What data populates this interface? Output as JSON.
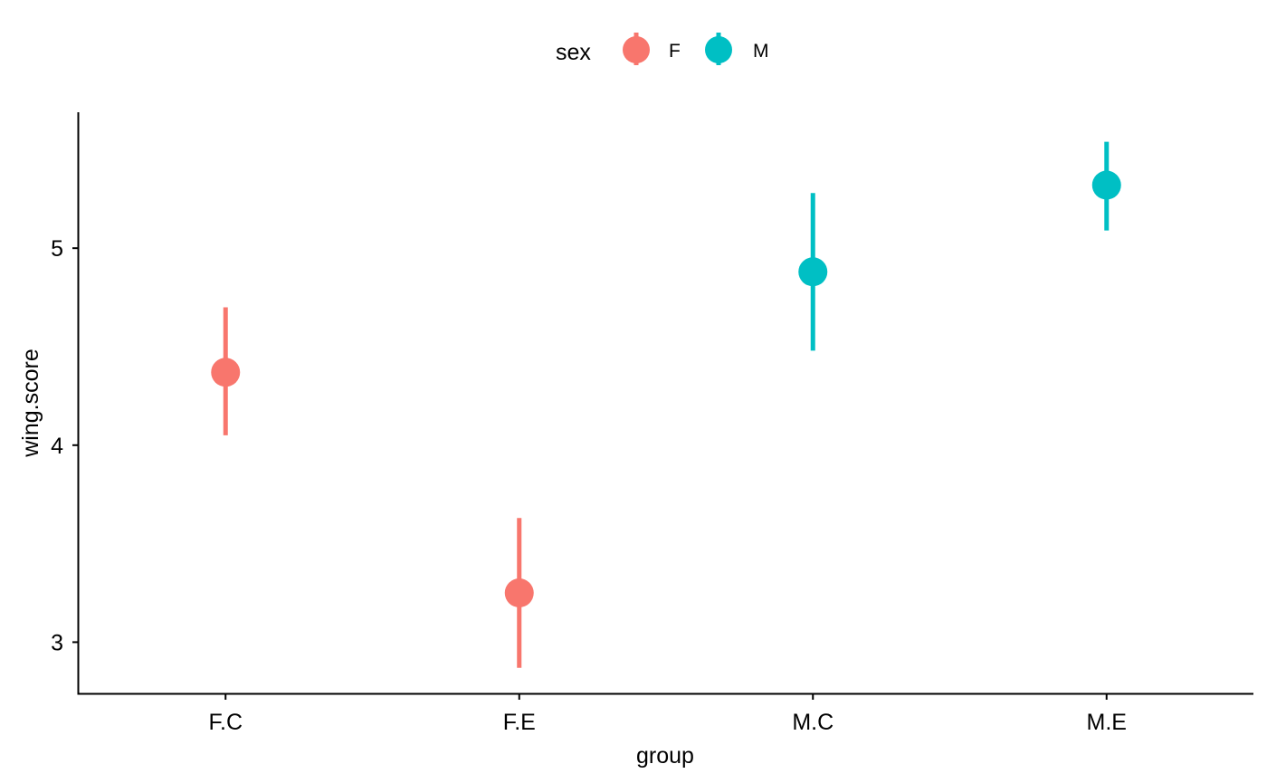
{
  "chart_data": {
    "type": "scatter",
    "x_label": "group",
    "y_label": "wing.score",
    "categories": [
      "F.C",
      "F.E",
      "M.C",
      "M.E"
    ],
    "y_range": [
      2.74,
      5.69
    ],
    "y_ticks": [
      3,
      4,
      5
    ],
    "grid": false,
    "legend": {
      "title": "sex",
      "position": "top",
      "entries": [
        {
          "label": "F",
          "color": "#F8766D"
        },
        {
          "label": "M",
          "color": "#00BFC4"
        }
      ]
    },
    "points": [
      {
        "group": "F.C",
        "sex": "F",
        "y": 4.37,
        "lower": 4.05,
        "upper": 4.7
      },
      {
        "group": "F.E",
        "sex": "F",
        "y": 3.25,
        "lower": 2.87,
        "upper": 3.63
      },
      {
        "group": "M.C",
        "sex": "M",
        "y": 4.88,
        "lower": 4.48,
        "upper": 5.28
      },
      {
        "group": "M.E",
        "sex": "M",
        "y": 5.32,
        "lower": 5.09,
        "upper": 5.54
      }
    ]
  }
}
